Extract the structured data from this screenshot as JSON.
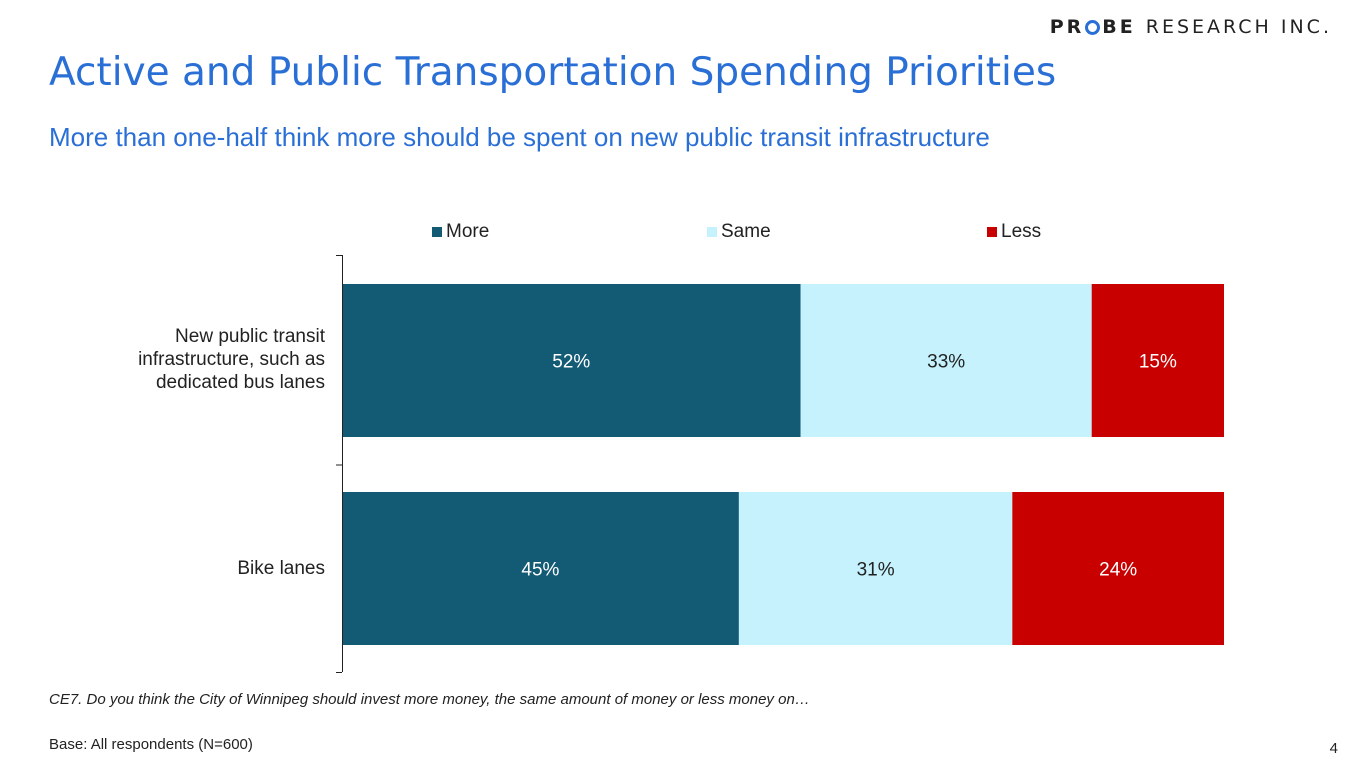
{
  "logo": {
    "bold_start": "PR",
    "bold_end": "BE",
    "rest": "RESEARCH INC."
  },
  "title": "Active and Public Transportation Spending Priorities",
  "subtitle": "More than one-half think more should be spent on new public transit infrastructure",
  "chart_data": {
    "type": "bar",
    "orientation": "horizontal",
    "stacked": true,
    "normalized": true,
    "categories": [
      "New public transit infrastructure, such as dedicated bus lanes",
      "Bike lanes"
    ],
    "category_lines": [
      [
        "New public transit",
        "infrastructure, such as",
        "dedicated bus lanes"
      ],
      [
        "Bike lanes"
      ]
    ],
    "series": [
      {
        "name": "More",
        "values": [
          52,
          45
        ],
        "labels": [
          "52%",
          "45%"
        ],
        "color": "#135a75",
        "label_color": "#ffffff"
      },
      {
        "name": "Same",
        "values": [
          33,
          31
        ],
        "labels": [
          "33%",
          "31%"
        ],
        "color": "#c5f2fd",
        "label_color": "#222222"
      },
      {
        "name": "Less",
        "values": [
          15,
          24
        ],
        "labels": [
          "15%",
          "24%"
        ],
        "color": "#c80000",
        "label_color": "#ffffff"
      }
    ],
    "legend": "top",
    "grid": false,
    "xlim": [
      0,
      100
    ]
  },
  "footnote": "CE7. Do you think the City of Winnipeg should invest more money, the same amount of money or less money on…",
  "base": "Base: All respondents (N=600)",
  "page_number": "4"
}
